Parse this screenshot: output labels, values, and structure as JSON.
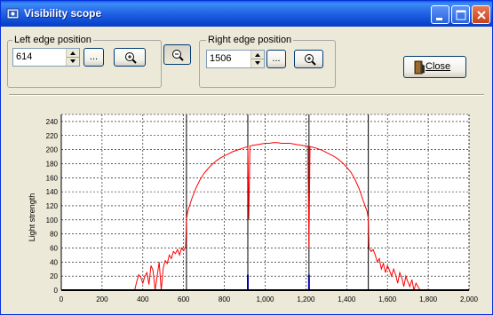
{
  "window": {
    "title": "Visibility scope"
  },
  "left_edge": {
    "label": "Left edge position",
    "value": "614",
    "browse_label": "...",
    "zoom_icon": "zoom-in-icon"
  },
  "right_edge": {
    "label": "Right edge position",
    "value": "1506",
    "browse_label": "...",
    "zoom_icon": "zoom-in-icon"
  },
  "toolbar": {
    "zoom_toggle_icon": "zoom-icon"
  },
  "close_button": {
    "label": "Close",
    "icon": "exit-door-icon"
  },
  "colors": {
    "signal": "#FF0000",
    "marker": "#000000",
    "sample": "#0000AA",
    "grid": "#000000"
  },
  "chart_data": {
    "type": "line",
    "xlabel": "",
    "ylabel": "Light strength",
    "xlim": [
      0,
      2000
    ],
    "ylim": [
      0,
      250
    ],
    "xticks": [
      "0",
      "200",
      "400",
      "600",
      "800",
      "1,000",
      "1,200",
      "1,400",
      "1,600",
      "1,800",
      "2,000"
    ],
    "yticks": [
      "0",
      "20",
      "40",
      "60",
      "80",
      "100",
      "120",
      "140",
      "160",
      "180",
      "200",
      "220",
      "240"
    ],
    "grid": true,
    "series": [
      {
        "x": [
          360,
          370,
          380,
          390,
          400,
          410,
          420,
          430,
          440,
          450,
          460,
          470,
          480,
          490,
          500,
          510,
          520,
          530,
          540,
          550,
          560,
          570,
          580,
          590,
          600,
          610,
          614,
          620,
          640,
          660,
          680,
          700,
          720,
          740,
          760,
          780,
          800,
          820,
          840,
          860,
          880,
          900,
          915,
          920,
          925,
          940,
          960,
          980,
          1000,
          1020,
          1040,
          1060,
          1080,
          1100,
          1120,
          1140,
          1160,
          1180,
          1200,
          1210,
          1215,
          1220,
          1240,
          1260,
          1280,
          1300,
          1320,
          1340,
          1360,
          1380,
          1400,
          1420,
          1440,
          1460,
          1480,
          1500,
          1506,
          1510,
          1520,
          1530,
          1540,
          1550,
          1560,
          1570,
          1580,
          1590,
          1600,
          1610,
          1620,
          1630,
          1640,
          1650,
          1660,
          1670,
          1680,
          1690,
          1700,
          1710,
          1720,
          1730,
          1740,
          1750,
          1760
        ],
        "y": [
          0,
          12,
          22,
          18,
          10,
          20,
          25,
          8,
          35,
          28,
          0,
          20,
          40,
          0,
          32,
          42,
          38,
          50,
          45,
          55,
          52,
          58,
          50,
          60,
          56,
          62,
          100,
          112,
          130,
          145,
          157,
          166,
          173,
          179,
          184,
          188,
          191,
          194,
          197,
          199,
          201,
          203,
          204,
          100,
          205,
          206,
          207,
          208,
          209,
          209,
          210,
          210,
          209,
          209,
          209,
          208,
          207,
          206,
          205,
          205,
          60,
          204,
          203,
          201,
          199,
          196,
          193,
          190,
          186,
          181,
          175,
          168,
          158,
          145,
          128,
          112,
          102,
          60,
          55,
          58,
          50,
          40,
          45,
          30,
          38,
          25,
          35,
          28,
          20,
          30,
          22,
          10,
          25,
          18,
          5,
          20,
          12,
          5,
          15,
          0,
          10,
          5,
          0
        ]
      }
    ],
    "markers": [
      {
        "x": 614,
        "kind": "edge"
      },
      {
        "x": 915,
        "kind": "sample",
        "y": 22
      },
      {
        "x": 1215,
        "kind": "sample",
        "y": 22
      },
      {
        "x": 1506,
        "kind": "edge"
      }
    ]
  }
}
